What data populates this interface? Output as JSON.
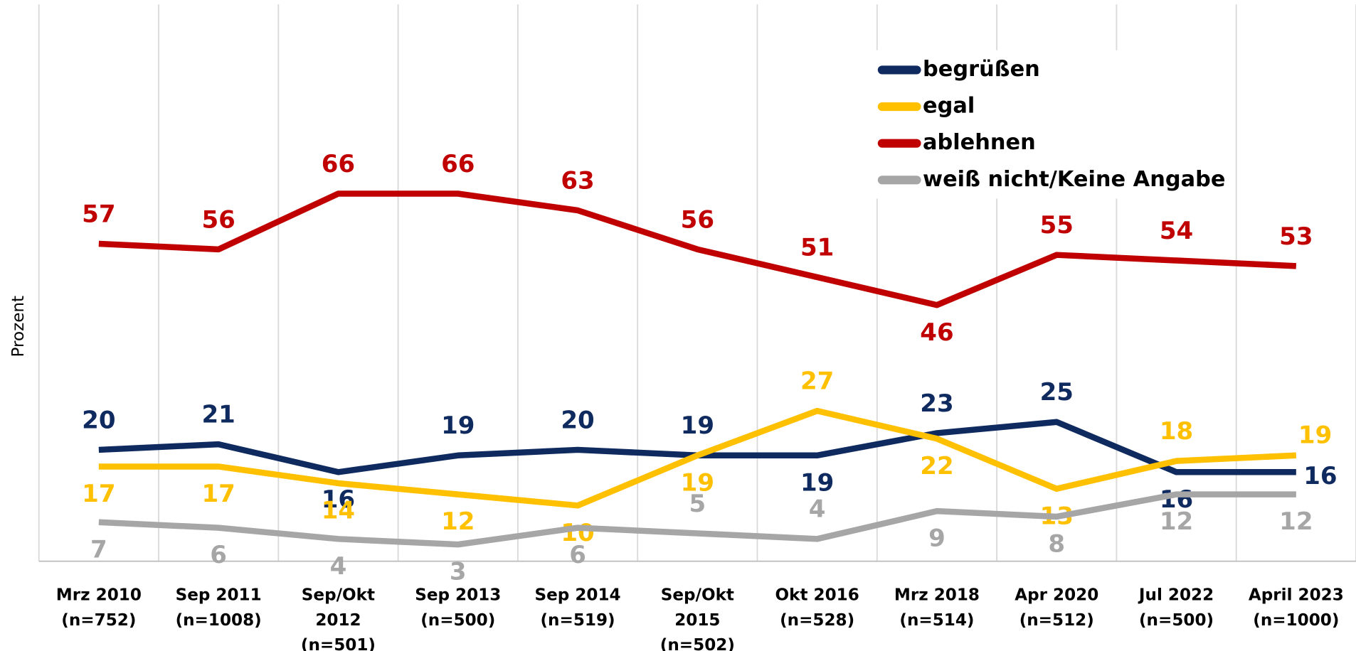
{
  "chart_data": {
    "type": "line",
    "y_label": "Prozent",
    "categories": [
      [
        "Mrz 2010",
        "(n=752)"
      ],
      [
        "Sep 2011",
        "(n=1008)"
      ],
      [
        "Sep/Okt",
        "2012",
        "(n=501)"
      ],
      [
        "Sep 2013",
        "(n=500)"
      ],
      [
        "Sep 2014",
        "(n=519)"
      ],
      [
        "Sep/Okt",
        "2015",
        "(n=502)"
      ],
      [
        "Okt 2016",
        "(n=528)"
      ],
      [
        "Mrz 2018",
        "(n=514)"
      ],
      [
        "Apr 2020",
        "(n=512)"
      ],
      [
        "Jul 2022",
        "(n=500)"
      ],
      [
        "April 2023",
        "(n=1000)"
      ]
    ],
    "series": [
      {
        "name": "begrüßen",
        "color": "#0f2a5f",
        "values": [
          20,
          21,
          16,
          19,
          20,
          19,
          19,
          23,
          25,
          16,
          16
        ]
      },
      {
        "name": "egal",
        "color": "#ffc000",
        "values": [
          17,
          17,
          14,
          12,
          10,
          19,
          27,
          22,
          13,
          18,
          19
        ]
      },
      {
        "name": "ablehnen",
        "color": "#c00000",
        "values": [
          57,
          56,
          66,
          66,
          63,
          56,
          51,
          46,
          55,
          54,
          53
        ]
      },
      {
        "name": "weiß nicht/Keine Angabe",
        "color": "#a6a6a6",
        "values": [
          7,
          6,
          4,
          3,
          6,
          5,
          4,
          9,
          8,
          12,
          12
        ]
      }
    ],
    "ylim": [
      0,
      100
    ],
    "legend": "top-right"
  }
}
